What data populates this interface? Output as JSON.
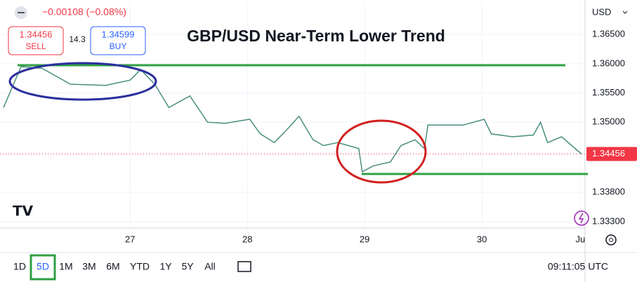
{
  "chart_data": {
    "type": "line",
    "title": "GBP/USD Near-Term Lower Trend",
    "change": "−0.00108 (−0.08%)",
    "sell": {
      "price": "1.34456",
      "label": "SELL"
    },
    "spread": "14.3",
    "buy": {
      "price": "1.34599",
      "label": "BUY"
    },
    "currency": "USD",
    "last_price": 1.34456,
    "color": "#4a8f7e",
    "x": [
      25.92,
      26.07,
      26.25,
      26.49,
      26.79,
      27.0,
      27.09,
      27.21,
      27.33,
      27.51,
      27.66,
      27.81,
      28.02,
      28.11,
      28.23,
      28.35,
      28.44,
      28.56,
      28.65,
      28.77,
      28.95,
      28.98,
      29.07,
      29.22,
      29.31,
      29.43,
      29.51,
      29.54,
      29.72,
      29.84,
      30.02,
      30.08,
      30.26,
      30.44,
      30.5,
      30.56,
      30.68,
      30.85
    ],
    "values": [
      1.3525,
      1.3595,
      1.3592,
      1.3565,
      1.3563,
      1.3572,
      1.359,
      1.3565,
      1.3525,
      1.3545,
      1.35,
      1.3498,
      1.3505,
      1.348,
      1.3465,
      1.349,
      1.351,
      1.347,
      1.346,
      1.3465,
      1.3455,
      1.3415,
      1.3425,
      1.3432,
      1.346,
      1.347,
      1.3455,
      1.3495,
      1.3495,
      1.3495,
      1.3505,
      1.348,
      1.3475,
      1.3478,
      1.35,
      1.3465,
      1.3475,
      1.34456
    ],
    "xlim": [
      25.89,
      30.88
    ],
    "xticks": [
      27,
      28,
      29,
      30,
      {
        "value": 30.84,
        "label": "Ju"
      }
    ],
    "ylim": [
      1.3319,
      1.3703
    ],
    "yticks": [
      {
        "value": 1.365,
        "label": "1.36500"
      },
      {
        "value": 1.36,
        "label": "1.36000"
      },
      {
        "value": 1.355,
        "label": "1.35500"
      },
      {
        "value": 1.35,
        "label": "1.35000"
      },
      {
        "value": 1.338,
        "label": "1.33800"
      },
      {
        "value": 1.333,
        "label": "1.33300"
      }
    ],
    "grid": true,
    "ranges": [
      "1D",
      "5D",
      "1M",
      "3M",
      "6M",
      "YTD",
      "1Y",
      "5Y",
      "All"
    ],
    "active_range": "5D",
    "clock": "09:11:05 UTC"
  }
}
